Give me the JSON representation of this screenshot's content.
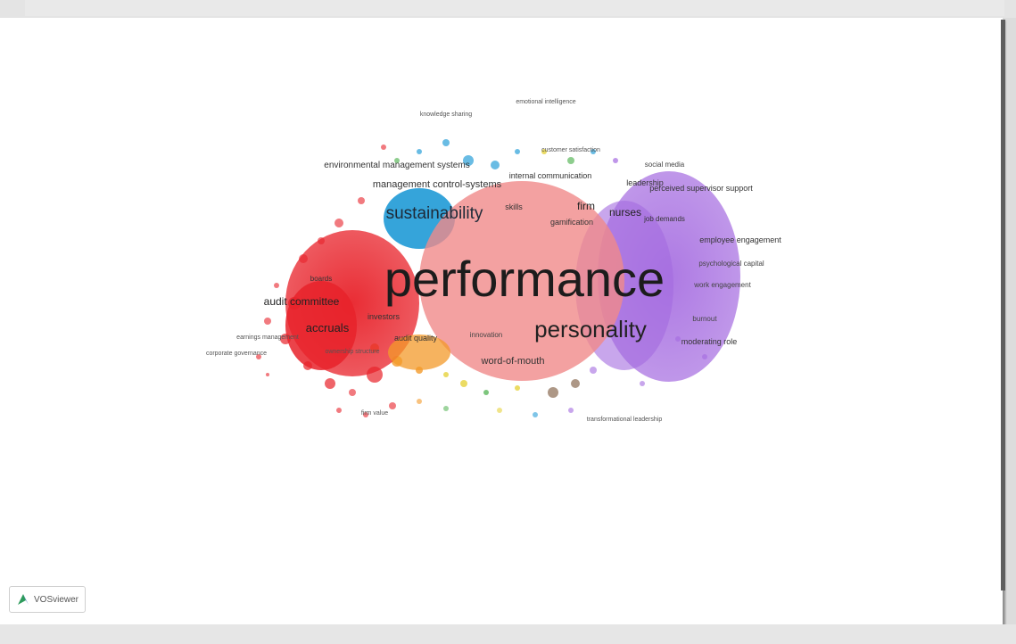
{
  "app": {
    "logo_text": "VOSviewer"
  },
  "colors": {
    "red_cluster": "#e8222a",
    "blue_cluster": "#2a9fd8",
    "pink_cluster": "#f08a8a",
    "purple_cluster": "#a46ae0",
    "orange_cluster": "#f39a2a",
    "green_cluster": "#5cb85c",
    "yellow_cluster": "#e6d23c"
  },
  "terms": {
    "performance": "performance",
    "personality": "personality",
    "sustainability": "sustainability",
    "management_control_systems": "management control-systems",
    "audit_committee": "audit committee",
    "accruals": "accruals",
    "word_of_mouth": "word-of-mouth",
    "nurses": "nurses",
    "firm": "firm",
    "skills": "skills",
    "gamification": "gamification",
    "internal_communication": "internal communication",
    "perceived_supervisor_support": "perceived supervisor support",
    "environmental_management_systems": "environmental management systems",
    "leadership": "leadership",
    "employee_engagement": "employee engagement",
    "moderating_role": "moderating role",
    "social_media": "social media",
    "boards": "boards",
    "investors": "investors",
    "audit_quality": "audit quality",
    "job_demands": "job demands",
    "emotional_intelligence": "emotional intelligence",
    "customer_satisfaction": "customer satisfaction",
    "transformational_leadership": "transformational leadership",
    "knowledge_sharing": "knowledge sharing",
    "earnings_management": "earnings management",
    "corporate_governance": "corporate governance",
    "psychological_capital": "psychological capital",
    "work_engagement": "work engagement",
    "firm_value": "firm value",
    "burnout": "burnout",
    "innovation": "innovation",
    "ownership_structure": "ownership structure"
  }
}
